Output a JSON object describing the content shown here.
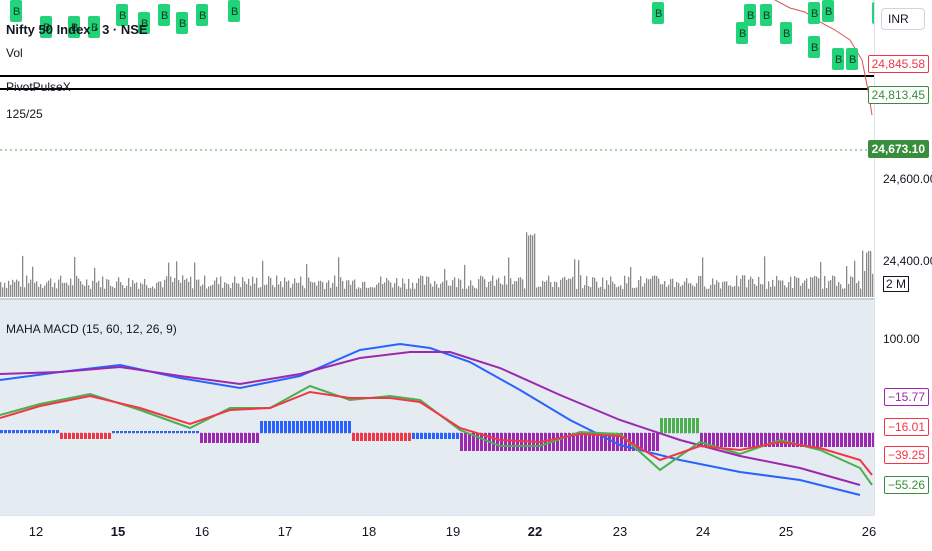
{
  "header": {
    "symbol_title": "Nifty 50 Index · 3 · NSE",
    "vol_label": "Vol",
    "indicator_name": "PivotPulseX",
    "ratio_text": "125/25"
  },
  "price_scale": {
    "currency": "INR",
    "labels": [
      "24,845.58",
      "24,813.45",
      "24,673.10",
      "24,600.00",
      "24,400.00"
    ],
    "volume_badge": "2 M",
    "macd_top": "100.00",
    "macd_labels": [
      "−15.77",
      "−16.01",
      "−39.25",
      "−55.26"
    ]
  },
  "macd": {
    "title": "MAHA MACD (15, 60, 12, 26, 9)"
  },
  "time_axis": {
    "labels": [
      "12",
      "15",
      "16",
      "17",
      "18",
      "19",
      "22",
      "23",
      "24",
      "25",
      "26"
    ]
  },
  "markers": {
    "signal_letter": "B"
  },
  "colors": {
    "bg": "#ffffff",
    "macd_bg": "#e4ecf2",
    "blue_line": "#2962ff",
    "purple_line": "#9c27b0",
    "green_line": "#4caf50",
    "red_line": "#f23645",
    "buy_marker": "#22d37a",
    "price_highlight": "#388e3c",
    "volume_bars": "#8a8a8a"
  }
}
